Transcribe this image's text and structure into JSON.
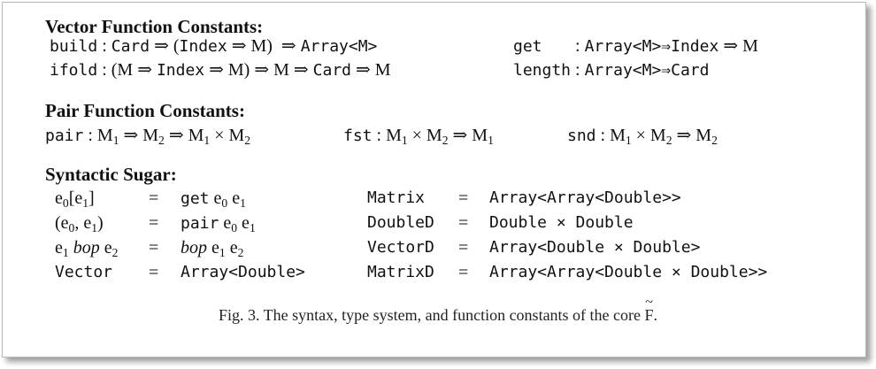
{
  "sections": {
    "vector": {
      "title": "Vector Function Constants:",
      "build": {
        "name": "build",
        "sig_pre": " : Card ⇒ (Index ⇒ M) ⇒ Array<M>"
      },
      "ifold": {
        "name": "ifold",
        "sig": " : (M ⇒ Index ⇒ M) ⇒ M ⇒ Card ⇒ M"
      },
      "get": {
        "name": "get",
        "sig": "  : Array<M>⇒Index ⇒ M"
      },
      "length": {
        "name": "length",
        "sig": " : Array<M>⇒Card"
      }
    },
    "pair": {
      "title": "Pair Function Constants:",
      "pair": {
        "name": "pair",
        "sig": " : M₁ ⇒ M₂ ⇒ M₁ × M₂"
      },
      "fst": {
        "name": "fst",
        "sig": " : M₁ × M₂ ⇒ M₁"
      },
      "snd": {
        "name": "snd",
        "sig": " : M₁ × M₂ ⇒ M₂"
      }
    },
    "sugar": {
      "title": "Syntactic Sugar:",
      "eq": "=",
      "rows": [
        {
          "lhs": "e₀[e₁]",
          "rhs": "get e₀ e₁",
          "lhs2": "Matrix",
          "rhs2": "Array<Array<Double>>"
        },
        {
          "lhs": "(e₀, e₁)",
          "rhs": "pair e₀ e₁",
          "lhs2": "DoubleD",
          "rhs2": "Double × Double"
        },
        {
          "lhs": "e₁ bop e₂",
          "rhs": "bop e₁ e₂",
          "lhs2": "VectorD",
          "rhs2": "Array<Double × Double>"
        },
        {
          "lhs": "Vector",
          "rhs": "Array<Double>",
          "lhs2": "MatrixD",
          "rhs2": "Array<Array<Double × Double>>"
        }
      ]
    }
  },
  "caption": {
    "prefix": "Fig. 3.  The syntax, type system, and function constants of the core ",
    "core_letter": "F",
    "suffix": "."
  }
}
